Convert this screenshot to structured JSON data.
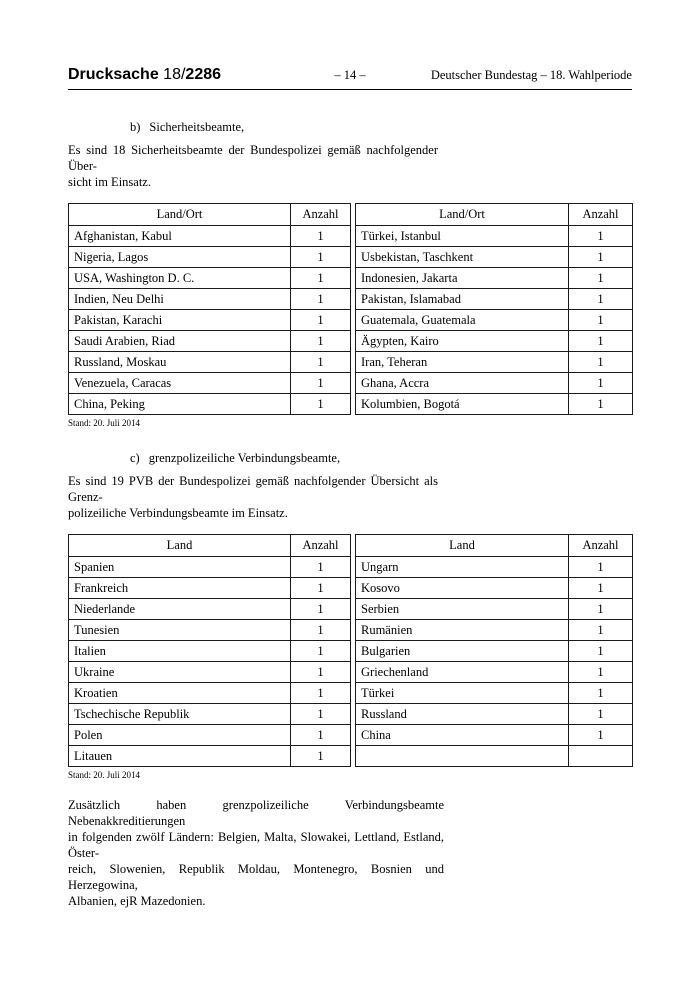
{
  "header": {
    "doc_label": "Drucksache ",
    "doc_no_regular": "18/",
    "doc_no_bold": "2286",
    "page_number": "– 14 –",
    "publication": "Deutscher Bundestag – 18. Wahlperiode"
  },
  "section_b": {
    "label": "b)",
    "title": "Sicherheitsbeamte,",
    "intro": "Es sind 18 Sicherheitsbeamte der Bundespolizei gemäß nachfolgender Über-\nsicht im Einsatz."
  },
  "section_c": {
    "label": "c)",
    "title": "grenzpolizeiliche Verbindungsbeamte,",
    "intro": "Es sind 19 PVB der Bundespolizei gemäß nachfolgender Übersicht als Grenz-\npolizeiliche Verbindungsbeamte im Einsatz."
  },
  "table_b": {
    "left": {
      "headers": [
        "Land/Ort",
        "Anzahl"
      ],
      "rows": [
        [
          "Afghanistan, Kabul",
          "1"
        ],
        [
          "Nigeria, Lagos",
          "1"
        ],
        [
          "USA, Washington D. C.",
          "1"
        ],
        [
          "Indien, Neu Delhi",
          "1"
        ],
        [
          "Pakistan, Karachi",
          "1"
        ],
        [
          "Saudi Arabien, Riad",
          "1"
        ],
        [
          "Russland, Moskau",
          "1"
        ],
        [
          "Venezuela, Caracas",
          "1"
        ],
        [
          "China, Peking",
          "1"
        ]
      ]
    },
    "right": {
      "headers": [
        "Land/Ort",
        "Anzahl"
      ],
      "rows": [
        [
          "Türkei, Istanbul",
          "1"
        ],
        [
          "Usbekistan, Taschkent",
          "1"
        ],
        [
          "Indonesien, Jakarta",
          "1"
        ],
        [
          "Pakistan, Islamabad",
          "1"
        ],
        [
          "Guatemala, Guatemala",
          "1"
        ],
        [
          "Ägypten, Kairo",
          "1"
        ],
        [
          "Iran, Teheran",
          "1"
        ],
        [
          "Ghana, Accra",
          "1"
        ],
        [
          "Kolumbien, Bogotá",
          "1"
        ]
      ]
    },
    "note": "Stand: 20. Juli 2014"
  },
  "table_c": {
    "left": {
      "headers": [
        "Land",
        "Anzahl"
      ],
      "rows": [
        [
          "Spanien",
          "1"
        ],
        [
          "Frankreich",
          "1"
        ],
        [
          "Niederlande",
          "1"
        ],
        [
          "Tunesien",
          "1"
        ],
        [
          "Italien",
          "1"
        ],
        [
          "Ukraine",
          "1"
        ],
        [
          "Kroatien",
          "1"
        ],
        [
          "Tschechische Republik",
          "1"
        ],
        [
          "Polen",
          "1"
        ],
        [
          "Litauen",
          "1"
        ]
      ]
    },
    "right": {
      "headers": [
        "Land",
        "Anzahl"
      ],
      "rows": [
        [
          "Ungarn",
          "1"
        ],
        [
          "Kosovo",
          "1"
        ],
        [
          "Serbien",
          "1"
        ],
        [
          "Rumänien",
          "1"
        ],
        [
          "Bulgarien",
          "1"
        ],
        [
          "Griechenland",
          "1"
        ],
        [
          "Türkei",
          "1"
        ],
        [
          "Russland",
          "1"
        ],
        [
          "China",
          "1"
        ],
        [
          "",
          ""
        ]
      ]
    },
    "note": "Stand: 20. Juli 2014"
  },
  "closing_paragraph": "Zusätzlich haben grenzpolizeiliche Verbindungsbeamte Nebenakkreditierungen\nin folgenden zwölf Ländern: Belgien, Malta, Slowakei, Lettland, Estland, Öster-\nreich, Slowenien, Republik Moldau, Montenegro, Bosnien und Herzegowina,\nAlbanien, ejR Mazedonien."
}
